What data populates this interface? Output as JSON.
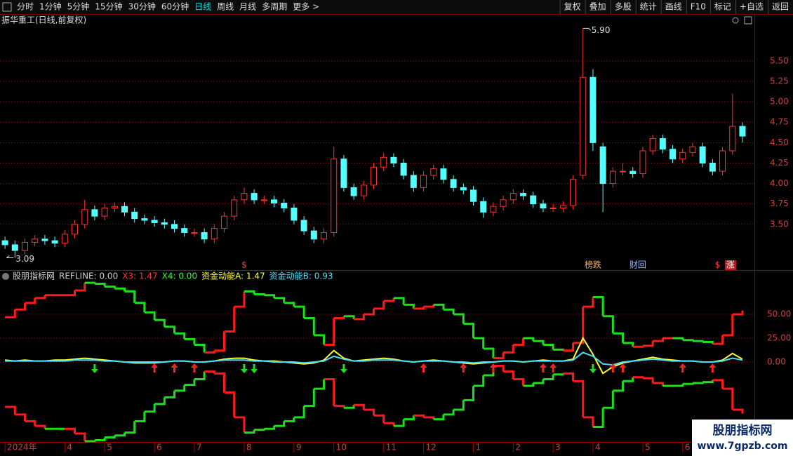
{
  "toolbar": {
    "tabs": [
      "分时",
      "1分钟",
      "5分钟",
      "15分钟",
      "30分钟",
      "60分钟",
      "日线",
      "周线",
      "月线",
      "多周期",
      "更多 >"
    ],
    "active": 6,
    "buttons": [
      "复权",
      "叠加",
      "多股",
      "统计",
      "画线",
      "F10",
      "标记",
      "+自选",
      "返回"
    ]
  },
  "watermark": {
    "title": "股朋指标网",
    "url": "www.7gpzb.com"
  },
  "chart_data": [
    {
      "type": "candlestick",
      "title": "振华重工(日线,前复权)",
      "open": [
        3.3,
        3.25,
        3.18,
        3.28,
        3.32,
        3.3,
        3.27,
        3.38,
        3.5,
        3.68,
        3.6,
        3.7,
        3.72,
        3.65,
        3.57,
        3.55,
        3.52,
        3.5,
        3.45,
        3.4,
        3.4,
        3.32,
        3.45,
        3.6,
        3.8,
        3.88,
        3.8,
        3.8,
        3.76,
        3.7,
        3.55,
        3.42,
        3.32,
        3.4,
        4.3,
        3.95,
        3.85,
        3.98,
        4.2,
        4.32,
        4.25,
        4.1,
        3.95,
        4.1,
        4.18,
        4.05,
        3.95,
        3.92,
        3.78,
        3.65,
        3.72,
        3.8,
        3.88,
        3.85,
        3.75,
        3.7,
        3.7,
        3.73,
        4.1,
        5.3,
        4.45,
        4.0,
        4.15,
        4.15,
        4.12,
        4.4,
        4.55,
        4.42,
        4.3,
        4.38,
        4.45,
        4.25,
        4.15,
        4.4,
        4.7
      ],
      "high": [
        3.35,
        3.3,
        3.33,
        3.37,
        3.37,
        3.35,
        3.43,
        3.55,
        3.8,
        3.73,
        3.75,
        3.77,
        3.77,
        3.7,
        3.62,
        3.6,
        3.57,
        3.55,
        3.5,
        3.45,
        3.45,
        3.5,
        3.65,
        3.85,
        3.95,
        3.93,
        3.85,
        3.85,
        3.81,
        3.75,
        3.6,
        3.47,
        3.45,
        4.45,
        4.35,
        4.0,
        4.03,
        4.25,
        4.37,
        4.37,
        4.3,
        4.15,
        4.15,
        4.23,
        4.23,
        4.1,
        4.0,
        3.97,
        3.83,
        3.77,
        3.85,
        3.93,
        3.93,
        3.9,
        3.8,
        3.75,
        3.78,
        4.1,
        5.9,
        5.4,
        4.5,
        4.2,
        4.25,
        4.2,
        4.45,
        4.6,
        4.6,
        4.47,
        4.43,
        4.5,
        4.5,
        4.3,
        4.45,
        5.1,
        4.75
      ],
      "low": [
        3.2,
        3.09,
        3.13,
        3.23,
        3.25,
        3.22,
        3.22,
        3.33,
        3.45,
        3.55,
        3.55,
        3.65,
        3.6,
        3.52,
        3.5,
        3.47,
        3.45,
        3.4,
        3.35,
        3.35,
        3.27,
        3.27,
        3.4,
        3.55,
        3.75,
        3.75,
        3.75,
        3.71,
        3.65,
        3.5,
        3.37,
        3.27,
        3.27,
        3.35,
        3.9,
        3.8,
        3.8,
        3.93,
        4.15,
        4.2,
        4.05,
        3.9,
        3.9,
        4.05,
        4.0,
        3.9,
        3.87,
        3.73,
        3.58,
        3.6,
        3.67,
        3.75,
        3.8,
        3.7,
        3.65,
        3.65,
        3.65,
        3.68,
        4.05,
        4.4,
        3.65,
        3.95,
        4.1,
        4.07,
        4.07,
        4.35,
        4.37,
        4.25,
        4.25,
        4.33,
        4.2,
        4.1,
        4.1,
        4.35,
        4.5
      ],
      "close": [
        3.25,
        3.18,
        3.28,
        3.32,
        3.3,
        3.27,
        3.38,
        3.5,
        3.68,
        3.6,
        3.7,
        3.72,
        3.65,
        3.57,
        3.55,
        3.52,
        3.5,
        3.45,
        3.4,
        3.4,
        3.32,
        3.45,
        3.6,
        3.8,
        3.88,
        3.8,
        3.8,
        3.76,
        3.7,
        3.55,
        3.42,
        3.32,
        3.4,
        4.3,
        3.95,
        3.85,
        3.98,
        4.2,
        4.32,
        4.25,
        4.1,
        3.95,
        4.1,
        4.18,
        4.05,
        3.95,
        3.92,
        3.78,
        3.65,
        3.72,
        3.8,
        3.88,
        3.85,
        3.75,
        3.7,
        3.7,
        3.73,
        4.05,
        5.3,
        4.5,
        4.0,
        4.15,
        4.15,
        4.12,
        4.4,
        4.55,
        4.42,
        4.3,
        4.38,
        4.45,
        4.25,
        4.15,
        4.4,
        4.7,
        4.58
      ],
      "up_color": "#ff3232",
      "down_color": "#54ffff",
      "xlim": [
        -0.5,
        75.2
      ],
      "ylim": [
        2.94,
        5.92
      ],
      "yticks": [
        {
          "value": 3.5,
          "label": "3.50"
        },
        {
          "value": 3.75,
          "label": "3.75"
        },
        {
          "value": 4,
          "label": "4.00"
        },
        {
          "value": 4.25,
          "label": "4.25"
        },
        {
          "value": 4.5,
          "label": "4.50"
        },
        {
          "value": 4.75,
          "label": "4.75"
        },
        {
          "value": 5,
          "label": "5.00"
        },
        {
          "value": 5.25,
          "label": "5.25"
        },
        {
          "value": 5.5,
          "label": "5.50"
        }
      ],
      "grid": true,
      "high_label": {
        "index": 58,
        "value": 5.9,
        "label": "5.90"
      },
      "low_label": {
        "index": 1,
        "value": 3.09,
        "label": "3.09"
      },
      "markers": [
        {
          "index": 24,
          "text": "$",
          "color": "#ff4040"
        },
        {
          "index": 59,
          "text": "榜跌",
          "color": "#ffb060"
        },
        {
          "index": 63.5,
          "text": "财回",
          "color": "#9fb8ff"
        },
        {
          "index": 71.5,
          "text": "$",
          "color": "#ff4040"
        },
        {
          "index": 72.8,
          "text": "涨",
          "color": "#ffffff",
          "background": "#c01818"
        }
      ]
    },
    {
      "type": "line",
      "header": [
        {
          "text": "股朋指标网",
          "color": "#cccccc"
        },
        {
          "text": "REFLINE: 0.00",
          "color": "#cccccc"
        },
        {
          "text": "X3: 1.47",
          "color": "#ff3232"
        },
        {
          "text": "X4: 0.00",
          "color": "#32ff32"
        },
        {
          "text": "资金动能A: 1.47",
          "color": "#ffff30"
        },
        {
          "text": "资金动能B: 0.93",
          "color": "#40e0ff"
        }
      ],
      "xlim": [
        -0.5,
        75.2
      ],
      "ylim": [
        -83.8,
        85.3
      ],
      "yticks": [
        {
          "value": 0,
          "label": "0.00"
        },
        {
          "value": 25,
          "label": "25.00"
        },
        {
          "value": 50,
          "label": "50.00"
        }
      ],
      "grid": true,
      "xticks": [
        {
          "value": 0,
          "label": "2024年"
        },
        {
          "value": 6,
          "label": "4"
        },
        {
          "value": 10,
          "label": "5"
        },
        {
          "value": 15,
          "label": "6"
        },
        {
          "value": 19,
          "label": "7"
        },
        {
          "value": 24,
          "label": "8"
        },
        {
          "value": 29,
          "label": "9"
        },
        {
          "value": 33,
          "label": "10"
        },
        {
          "value": 38,
          "label": "11"
        },
        {
          "value": 42,
          "label": "12"
        },
        {
          "value": 47,
          "label": "1"
        },
        {
          "value": 51,
          "label": "2"
        },
        {
          "value": 55,
          "label": "3"
        },
        {
          "value": 59,
          "label": "4"
        },
        {
          "value": 64,
          "label": "5"
        },
        {
          "value": 68,
          "label": "6"
        }
      ],
      "series": [
        {
          "style": "step",
          "up_color": "#ff1a1a",
          "down_color": "#1adf1a",
          "values": [
            47,
            55,
            62,
            67,
            70,
            70,
            70,
            75,
            83,
            82,
            79,
            77,
            74,
            62,
            52,
            44,
            37,
            30,
            24,
            18,
            10,
            12,
            32,
            58,
            74,
            71,
            70,
            67,
            62,
            58,
            46,
            28,
            18,
            46,
            48,
            45,
            50,
            56,
            64,
            67,
            60,
            56,
            58,
            60,
            55,
            50,
            40,
            25,
            14,
            4,
            10,
            18,
            25,
            22,
            18,
            13,
            12,
            20,
            58,
            68,
            48,
            30,
            20,
            16,
            17,
            22,
            25,
            25,
            23,
            22,
            21,
            19,
            28,
            50,
            54
          ]
        },
        {
          "style": "step",
          "up_color": "#1adf1a",
          "down_color": "#ff1a1a",
          "values": [
            -47,
            -55,
            -62,
            -67,
            -70,
            -70,
            -70,
            -75,
            -83,
            -82,
            -79,
            -77,
            -74,
            -62,
            -52,
            -44,
            -37,
            -30,
            -24,
            -18,
            -10,
            -12,
            -32,
            -58,
            -74,
            -71,
            -70,
            -67,
            -62,
            -58,
            -46,
            -28,
            -18,
            -46,
            -48,
            -45,
            -50,
            -56,
            -64,
            -67,
            -60,
            -56,
            -58,
            -60,
            -55,
            -50,
            -40,
            -25,
            -14,
            -4,
            -10,
            -18,
            -25,
            -22,
            -18,
            -13,
            -12,
            -20,
            -58,
            -68,
            -48,
            -30,
            -20,
            -16,
            -17,
            -22,
            -25,
            -25,
            -23,
            -22,
            -21,
            -19,
            -28,
            -50,
            -54
          ]
        },
        {
          "style": "line",
          "color": "#ffff30",
          "values": [
            2,
            1,
            2,
            1,
            1,
            2,
            2,
            3,
            4,
            3,
            2,
            1,
            0,
            -1,
            -1,
            -1,
            0,
            1,
            1,
            0,
            0,
            1,
            3,
            4,
            4,
            2,
            1,
            1,
            0,
            -1,
            -2,
            -1,
            2,
            12,
            4,
            1,
            2,
            3,
            4,
            3,
            1,
            0,
            1,
            2,
            1,
            0,
            -1,
            -2,
            -1,
            0,
            1,
            1,
            0,
            1,
            2,
            1,
            1,
            3,
            25,
            8,
            -12,
            -5,
            -1,
            1,
            3,
            5,
            3,
            2,
            1,
            1,
            0,
            0,
            2,
            9,
            3
          ]
        },
        {
          "style": "line",
          "color": "#40e0ff",
          "values": [
            1,
            1,
            1,
            1,
            1,
            1,
            1,
            2,
            2,
            2,
            1,
            1,
            0,
            0,
            0,
            0,
            0,
            1,
            1,
            0,
            0,
            1,
            2,
            2,
            2,
            1,
            1,
            0,
            0,
            0,
            -1,
            0,
            1,
            6,
            3,
            1,
            1,
            2,
            2,
            2,
            1,
            0,
            1,
            1,
            1,
            0,
            0,
            -1,
            0,
            0,
            1,
            1,
            0,
            1,
            1,
            1,
            1,
            2,
            10,
            6,
            -2,
            -3,
            0,
            1,
            2,
            3,
            2,
            1,
            1,
            1,
            0,
            0,
            1,
            4,
            2
          ]
        }
      ],
      "buy_signals": [
        15,
        17,
        19,
        42,
        46,
        49,
        54,
        55,
        61,
        62,
        68,
        71
      ],
      "buy_color": "#ff2020",
      "sell_signals": [
        9,
        24,
        25,
        34,
        59
      ],
      "sell_color": "#20e020"
    }
  ]
}
